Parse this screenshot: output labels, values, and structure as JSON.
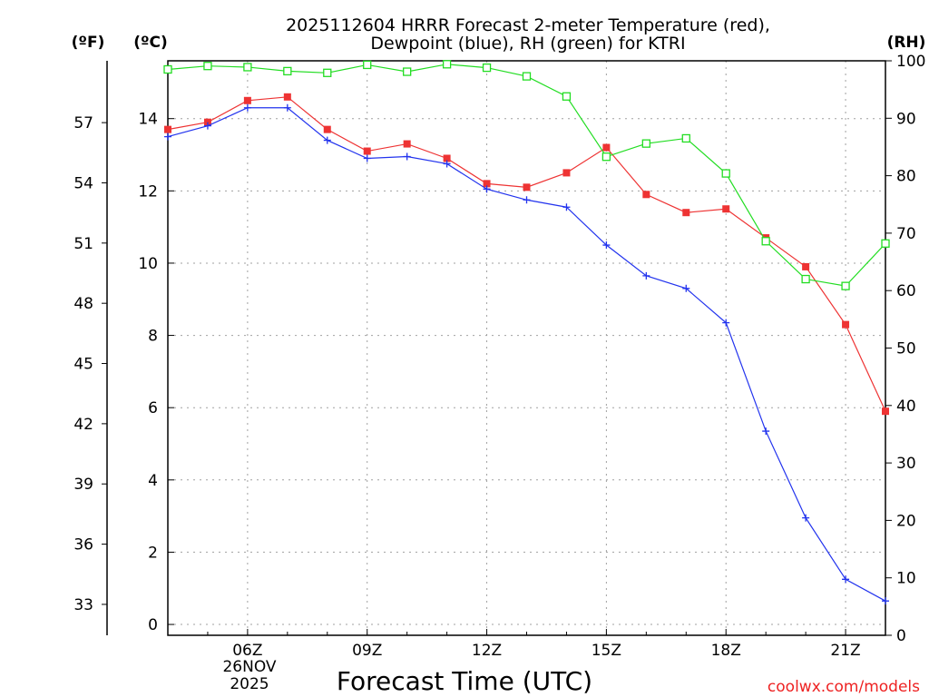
{
  "chart_data": {
    "type": "line",
    "title_line1": "2025112604 HRRR Forecast 2-meter Temperature (red),",
    "title_line2": "Dewpoint (blue), RH (green) for KTRI",
    "left_unit_f": "(ºF)",
    "left_unit_c": "(ºC)",
    "right_unit": "(RH)",
    "xlabel": "Forecast Time (UTC)",
    "date_label_line1": "26NOV",
    "date_label_line2": "2025",
    "credit": "coolwx.com/models",
    "x": [
      4,
      5,
      6,
      7,
      8,
      9,
      10,
      11,
      12,
      13,
      14,
      15,
      16,
      17,
      18,
      19,
      20,
      21,
      22
    ],
    "xlim": [
      4,
      22
    ],
    "x_ticks": [
      6,
      9,
      12,
      15,
      18,
      21
    ],
    "x_tick_labels": [
      "06Z",
      "09Z",
      "12Z",
      "15Z",
      "18Z",
      "21Z"
    ],
    "c_ylim": [
      -0.3,
      15.6
    ],
    "c_ticks": [
      0,
      2,
      4,
      6,
      8,
      10,
      12,
      14
    ],
    "c_tick_labels": [
      "0",
      "2",
      "4",
      "6",
      "8",
      "10",
      "12",
      "14"
    ],
    "f_ticks": [
      33,
      36,
      39,
      42,
      45,
      48,
      51,
      54,
      57
    ],
    "f_tick_labels": [
      "33",
      "36",
      "39",
      "42",
      "45",
      "48",
      "51",
      "54",
      "57"
    ],
    "rh_ylim": [
      0,
      100
    ],
    "rh_ticks": [
      0,
      10,
      20,
      30,
      40,
      50,
      60,
      70,
      80,
      90,
      100
    ],
    "rh_tick_labels": [
      "0",
      "10",
      "20",
      "30",
      "40",
      "50",
      "60",
      "70",
      "80",
      "90",
      "100"
    ],
    "series": [
      {
        "name": "Temperature",
        "axis": "c",
        "color": "#ee3333",
        "marker": "filled-square",
        "values": [
          13.7,
          13.9,
          14.5,
          14.6,
          13.7,
          13.1,
          13.3,
          12.9,
          12.2,
          12.1,
          12.5,
          13.2,
          11.9,
          11.4,
          11.5,
          10.7,
          9.9,
          8.3,
          5.9
        ]
      },
      {
        "name": "Dewpoint",
        "axis": "c",
        "color": "#2233ee",
        "marker": "plus",
        "values": [
          13.5,
          13.8,
          14.3,
          14.3,
          13.4,
          12.9,
          12.95,
          12.75,
          12.05,
          11.75,
          11.55,
          10.5,
          9.65,
          9.3,
          8.35,
          5.35,
          2.95,
          1.25,
          0.65
        ]
      },
      {
        "name": "RH",
        "axis": "rh",
        "color": "#22dd22",
        "marker": "open-square",
        "values": [
          98.5,
          99.1,
          98.9,
          98.2,
          97.9,
          99.3,
          98.1,
          99.4,
          98.8,
          97.3,
          93.8,
          83.3,
          85.6,
          86.5,
          80.4,
          68.6,
          62.0,
          60.8,
          68.2
        ]
      }
    ]
  }
}
